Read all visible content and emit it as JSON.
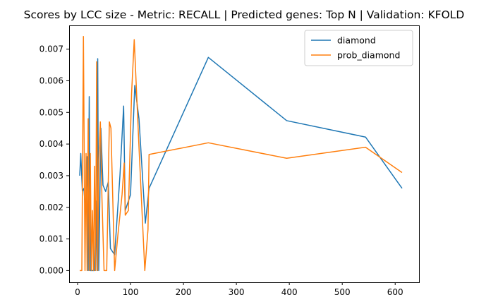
{
  "chart_data": {
    "type": "line",
    "title": "Scores by LCC size - Metric: RECALL | Predicted genes: Top N | Validation: KFOLD",
    "xlabel": "",
    "ylabel": "",
    "xlim": [
      -16,
      645
    ],
    "ylim": [
      -0.00037,
      0.00775
    ],
    "xticks": [
      0,
      100,
      200,
      300,
      400,
      500,
      600
    ],
    "xtick_labels": [
      "0",
      "100",
      "200",
      "300",
      "400",
      "500",
      "600"
    ],
    "yticks": [
      0.0,
      0.001,
      0.002,
      0.003,
      0.004,
      0.005,
      0.006,
      0.007
    ],
    "ytick_labels": [
      "0.000",
      "0.001",
      "0.002",
      "0.003",
      "0.004",
      "0.005",
      "0.006",
      "0.007"
    ],
    "grid": false,
    "legend_position": "upper right",
    "series": [
      {
        "name": "diamond",
        "color": "#1f77b4",
        "x": [
          4,
          6,
          9,
          12,
          15,
          18,
          20,
          22,
          24,
          28,
          32,
          35,
          37,
          38,
          40,
          44,
          48,
          53,
          58,
          62,
          70,
          80,
          87,
          90,
          100,
          108,
          116,
          128,
          135,
          247,
          395,
          544,
          613
        ],
        "y": [
          0.003,
          0.0037,
          0.0025,
          0.0026,
          0.0018,
          0.0036,
          0.0,
          0.0055,
          0.0,
          0.0,
          0.0,
          0.0022,
          0.0,
          0.0067,
          0.0,
          0.0045,
          0.0027,
          0.0025,
          0.0028,
          0.0007,
          0.0005,
          0.003,
          0.0052,
          0.0019,
          0.0024,
          0.00585,
          0.0048,
          0.0015,
          0.0026,
          0.00674,
          0.00474,
          0.00422,
          0.0026
        ]
      },
      {
        "name": "prob_diamond",
        "color": "#ff7f0e",
        "x": [
          4,
          8,
          11,
          14,
          16,
          18,
          20,
          22,
          24,
          26,
          28,
          30,
          32,
          34,
          36,
          38,
          40,
          43,
          46,
          50,
          55,
          60,
          63,
          70,
          76,
          84,
          88,
          90,
          96,
          102,
          107,
          116,
          127,
          133,
          135,
          247,
          395,
          544,
          613
        ],
        "y": [
          0.0,
          0.0,
          0.0074,
          0.0,
          0.0037,
          0.0,
          0.0048,
          0.0,
          0.0037,
          0.0,
          0.0019,
          0.0,
          0.0033,
          0.0,
          0.0066,
          0.0,
          0.0035,
          0.0047,
          0.0023,
          0.0,
          0.0,
          0.0047,
          0.0045,
          0.0,
          0.0011,
          0.0024,
          0.0034,
          0.00175,
          0.0019,
          0.0056,
          0.0073,
          0.0039,
          0.0,
          0.0013,
          0.00367,
          0.00404,
          0.00355,
          0.0039,
          0.0031
        ]
      }
    ]
  }
}
